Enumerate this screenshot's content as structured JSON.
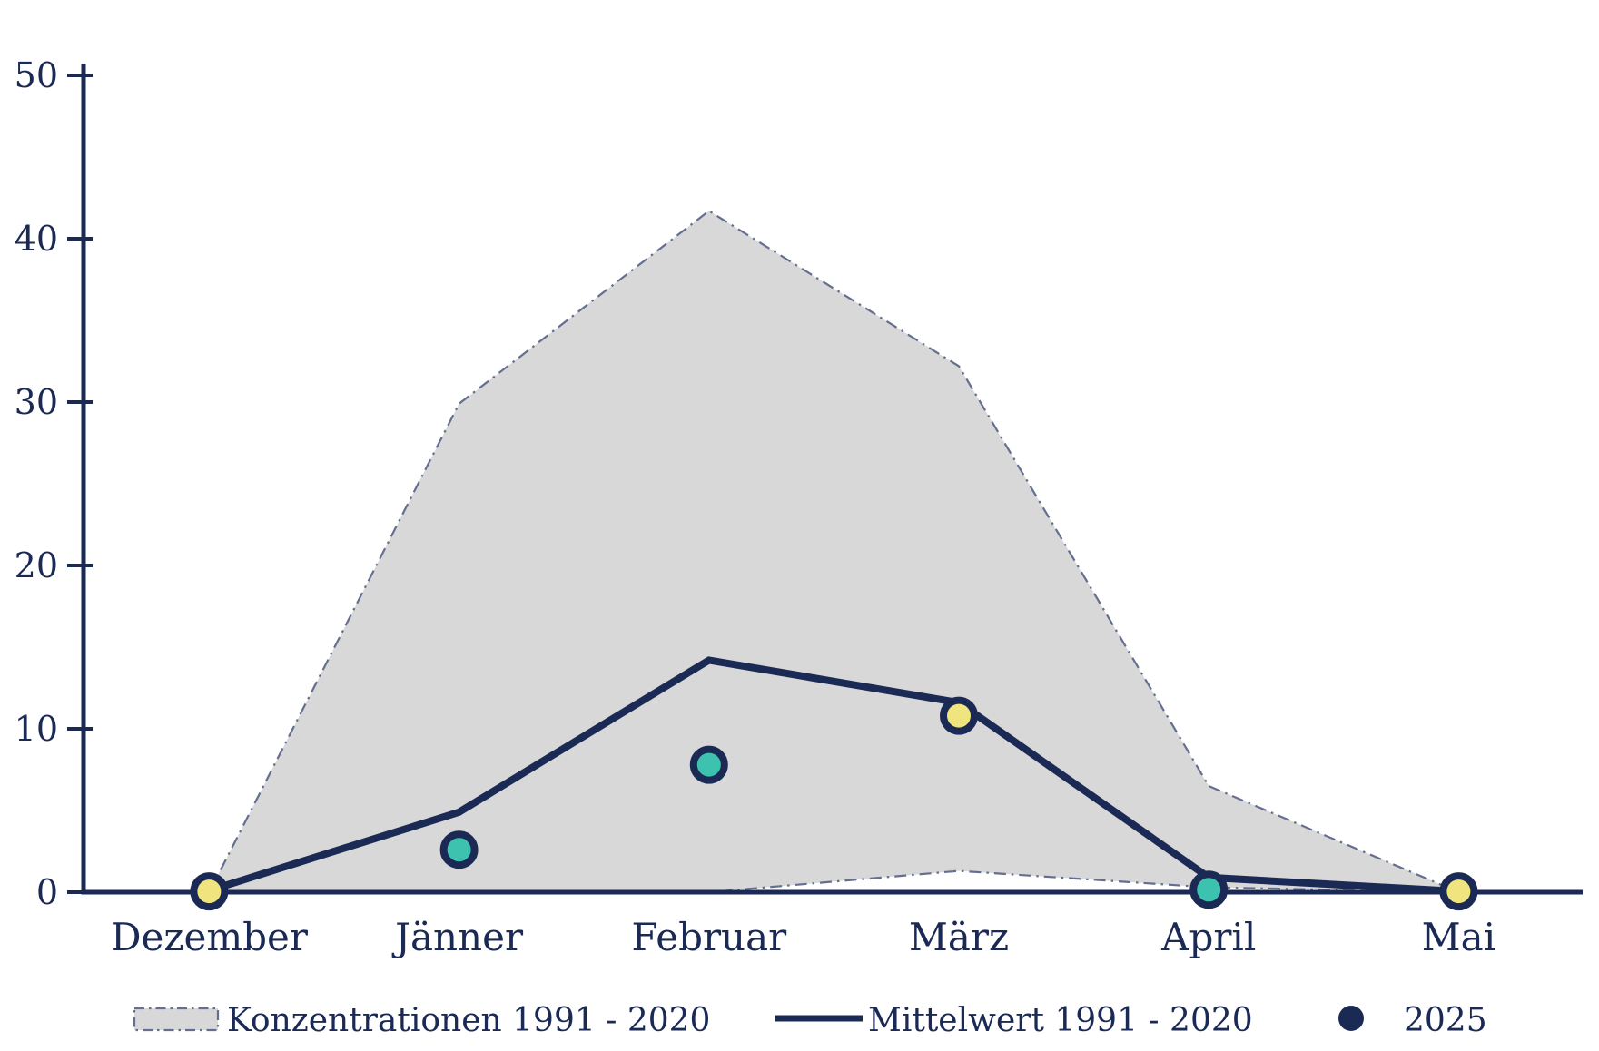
{
  "chart_data": {
    "type": "area",
    "title": "",
    "xlabel": "",
    "ylabel": "",
    "categories": [
      "Dezember",
      "Jänner",
      "Februar",
      "März",
      "April",
      "Mai"
    ],
    "y_ticks": [
      0,
      10,
      20,
      30,
      40,
      50
    ],
    "ylim": [
      0,
      50
    ],
    "grid": false,
    "legend_position": "bottom",
    "series": [
      {
        "name": "Konzentrationen 1991 - 2020",
        "type": "band",
        "upper": [
          0,
          29.9,
          41.7,
          32.2,
          6.5,
          0
        ],
        "lower": [
          0,
          0,
          0,
          1.3,
          0.3,
          0
        ]
      },
      {
        "name": "Mittelwert 1991 - 2020",
        "type": "line",
        "values": [
          0.1,
          4.9,
          14.2,
          11.6,
          0.9,
          0.05
        ]
      },
      {
        "name": "2025",
        "type": "scatter",
        "values": [
          0.05,
          2.6,
          7.8,
          10.8,
          0.15,
          0.05
        ],
        "point_colors": [
          "#f0e47e",
          "#3cc2ae",
          "#3cc2ae",
          "#f0e47e",
          "#3cc2ae",
          "#f0e47e"
        ]
      }
    ],
    "colors": {
      "axis_and_text": "#1b2a55",
      "band_fill": "#d8d8d8",
      "band_border": "#646e91",
      "mean_line": "#1b2a55",
      "point_ring": "#1b2a55",
      "teal": "#3cc2ae",
      "yellow": "#f0e47e"
    },
    "legend": [
      {
        "label": "Konzentrationen 1991 - 2020",
        "swatch": "band"
      },
      {
        "label": "Mittelwert 1991 - 2020",
        "swatch": "line"
      },
      {
        "label": "2025",
        "swatch": "dot"
      }
    ]
  }
}
